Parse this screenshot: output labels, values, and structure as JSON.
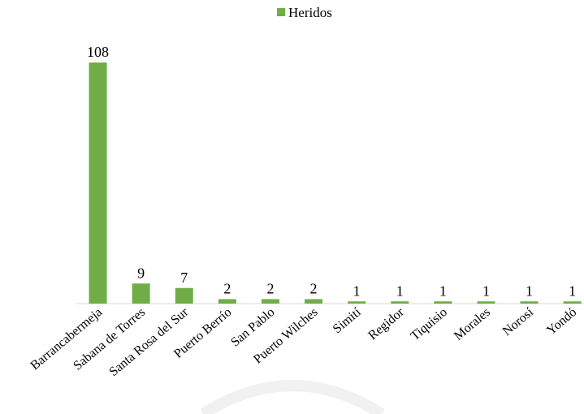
{
  "chart_data": {
    "type": "bar",
    "legend": "Heridos",
    "color": "#70ad47",
    "categories": [
      "Barrancabermeja",
      "Sabana de Torres",
      "Santa Rosa del Sur",
      "Puerto Berrío",
      "San Pablo",
      "Puerto Wilches",
      "Simití",
      "Regidor",
      "Tiquisio",
      "Morales",
      "Norosí",
      "Yondó"
    ],
    "values": [
      108,
      9,
      7,
      2,
      2,
      2,
      1,
      1,
      1,
      1,
      1,
      1
    ]
  }
}
